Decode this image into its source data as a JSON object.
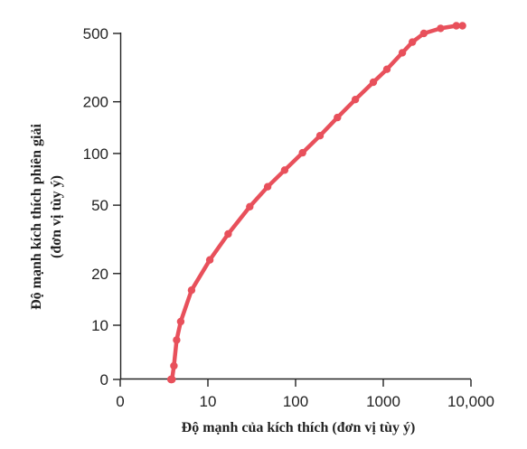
{
  "chart_data": {
    "type": "line",
    "xlabel": "Độ mạnh của kích thích (đơn vị tùy ý)",
    "ylabel_lines": [
      "Độ mạnh kích thích phiên giải",
      "(đơn vị tùy ý)"
    ],
    "x_scale": "log",
    "y_scale": "log",
    "x_ticks": [
      {
        "value": 0,
        "label": "0"
      },
      {
        "value": 10,
        "label": "10"
      },
      {
        "value": 100,
        "label": "100"
      },
      {
        "value": 1000,
        "label": "1000"
      },
      {
        "value": 10000,
        "label": "10,000"
      }
    ],
    "y_ticks": [
      {
        "value": 0,
        "label": "0"
      },
      {
        "value": 10,
        "label": "10"
      },
      {
        "value": 20,
        "label": "20"
      },
      {
        "value": 50,
        "label": "50"
      },
      {
        "value": 100,
        "label": "100"
      },
      {
        "value": 200,
        "label": "200"
      },
      {
        "value": 500,
        "label": "500"
      }
    ],
    "grid": false,
    "line_color": "#e8505b",
    "series": [
      {
        "points": [
          {
            "x": 3.8,
            "y": 1.4
          },
          {
            "x": 3.8,
            "y": 2.2
          },
          {
            "x": 3.9,
            "y": 4
          },
          {
            "x": 4.1,
            "y": 5.8
          },
          {
            "x": 4.4,
            "y": 8.2
          },
          {
            "x": 4.9,
            "y": 10.5
          },
          {
            "x": 6.5,
            "y": 16
          },
          {
            "x": 10.5,
            "y": 24
          },
          {
            "x": 17,
            "y": 34
          },
          {
            "x": 30,
            "y": 49
          },
          {
            "x": 48,
            "y": 64
          },
          {
            "x": 75,
            "y": 80
          },
          {
            "x": 120,
            "y": 101
          },
          {
            "x": 190,
            "y": 127
          },
          {
            "x": 300,
            "y": 162
          },
          {
            "x": 480,
            "y": 206
          },
          {
            "x": 770,
            "y": 260
          },
          {
            "x": 1100,
            "y": 309
          },
          {
            "x": 1650,
            "y": 386
          },
          {
            "x": 2150,
            "y": 445
          },
          {
            "x": 2900,
            "y": 500
          },
          {
            "x": 4500,
            "y": 535
          },
          {
            "x": 6800,
            "y": 554
          },
          {
            "x": 8000,
            "y": 554
          }
        ]
      }
    ]
  }
}
